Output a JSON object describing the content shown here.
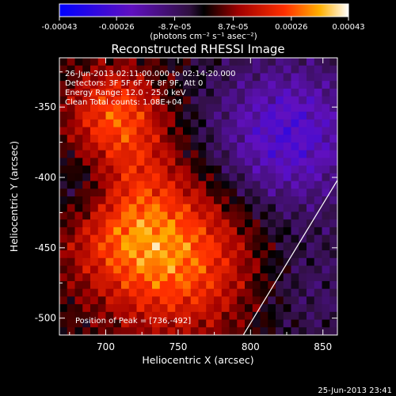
{
  "chart_data": {
    "type": "heatmap",
    "title": "Reconstructed RHESSI Image",
    "xlabel": "Heliocentric X (arcsec)",
    "ylabel": "Heliocentric Y (arcsec)",
    "xlim": [
      668,
      860
    ],
    "ylim": [
      -512,
      -315
    ],
    "xticks": [
      700,
      750,
      800,
      850
    ],
    "yticks": [
      -350,
      -400,
      -450,
      -500
    ],
    "xtick_labels": [
      "700",
      "750",
      "800",
      "850"
    ],
    "ytick_labels": [
      "-350",
      "-400",
      "-450",
      "-500"
    ],
    "colorbar": {
      "range": [
        -0.00043,
        0.00043
      ],
      "tick_values": [
        -0.00043,
        -0.00026,
        -8.7e-05,
        8.7e-05,
        0.00026,
        0.00043
      ],
      "tick_labels": [
        "-0.00043",
        "-0.00026",
        "-8.7e-05",
        "8.7e-05",
        "0.00026",
        "0.00043"
      ],
      "units": "(photons cm⁻² s⁻¹ asec⁻²)"
    },
    "annotations": [
      "26-Jun-2013 02:11:00.000 to 02:14:20.000",
      "Detectors: 3F 5F 6F 7F 8F 9F, Att 0",
      "Energy Range: 12.0 - 25.0 keV",
      "Clean     Total counts: 1.08E+04"
    ],
    "peak": {
      "label": "Position of Peak = [736,-492]",
      "x": 736,
      "y": -492
    },
    "limb_line": {
      "points": [
        [
          795,
          -512
        ],
        [
          860,
          -402
        ]
      ]
    },
    "grid": false
  },
  "footer_timestamp": "25-Jun-2013 23:41",
  "colors": {
    "background": "#000000",
    "text": "#ffffff"
  }
}
